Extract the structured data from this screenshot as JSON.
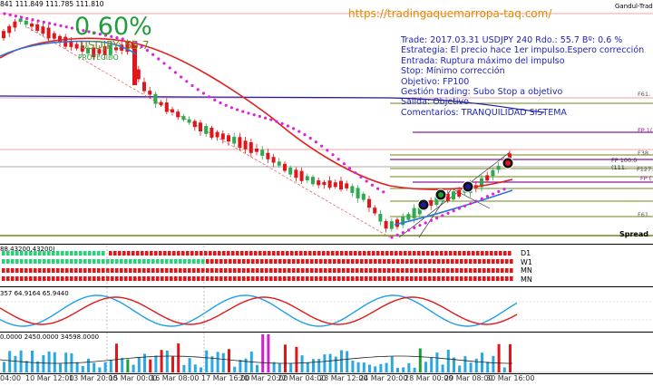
{
  "header": {
    "ohlc_text": "841 111.849 111.785 111.810",
    "symbol_text": "Gandul-Trad",
    "url": "https://tradingaquemarropa-taq.com/",
    "percent": "0.60%",
    "symbol_result": "USDJPY: 55.7",
    "protected_label": "PROTEGIDO"
  },
  "trade_info": [
    "Trade: 2017.03.31 USDJPY 240  Rdo.: 55.7  Bº: 0.6 %",
    "Estrategia: El precio hace 1er impulso.Espero corrección",
    "Entrada: Ruptura máximo del impulso",
    "Stop: Mínimo corrección",
    "Objetivo: FP100",
    "Gestión trading: Subo Stop a objetivo",
    "Salida: Objetivo",
    "Comentarios: TRANQUILIDAD SISTEMA"
  ],
  "levels": {
    "f61_top": "F61.",
    "fp_upper": "FP 1(",
    "f38": "F38.",
    "fp100": "FP 100.0 (111.",
    "f127": "F127.",
    "fp_lower": "FP (",
    "f61_bottom": "F61.",
    "spread": "Spread"
  },
  "signal_panel": {
    "title": "88.43200,43200)",
    "labels": [
      "D1",
      "W1",
      "MN",
      "MN"
    ]
  },
  "oscillator": {
    "label": "357 64.9164 65.9440"
  },
  "volume": {
    "label": "0.0000 2450.0000 34598.0000"
  },
  "x_axis": [
    "04:00",
    "10 Mar 12:00",
    "13 Mar 20:00",
    "15 Mar 00:00",
    "16 Mar 08:00",
    "17 Mar 16:00",
    "20 Mar 20:00",
    "22 Mar 04:00",
    "23 Mar 12:00",
    "24 Mar 20:00",
    "28 Mar 00:00",
    "29 Mar 08:00",
    "30 Mar 16:00"
  ],
  "colors": {
    "bull": "#2fa84f",
    "bear": "#e0161b",
    "ema_red": "#e02020",
    "ema_blue": "#2e74d8",
    "sar": "#e020e0",
    "navy": "#1a1aa0",
    "olive": "#6e8a1a",
    "purple": "#8a1a9a",
    "info_text": "#1f24b8",
    "percent_green": "#1e9e3a",
    "url_orange": "#e08a00"
  }
}
